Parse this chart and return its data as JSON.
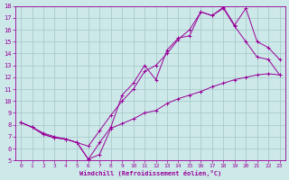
{
  "xlabel": "Windchill (Refroidissement éolien,°C)",
  "background_color": "#cce8e8",
  "line_color": "#990099",
  "grid_color": "#aacccc",
  "xlim": [
    -0.5,
    23.5
  ],
  "ylim": [
    5,
    18
  ],
  "xticks": [
    0,
    1,
    2,
    3,
    4,
    5,
    6,
    7,
    8,
    9,
    10,
    11,
    12,
    13,
    14,
    15,
    16,
    17,
    18,
    19,
    20,
    21,
    22,
    23
  ],
  "yticks": [
    5,
    6,
    7,
    8,
    9,
    10,
    11,
    12,
    13,
    14,
    15,
    16,
    17,
    18
  ],
  "line1_x": [
    0,
    1,
    2,
    3,
    4,
    5,
    6,
    7,
    8,
    9,
    10,
    11,
    12,
    13,
    14,
    15,
    16,
    17,
    18,
    19,
    20,
    21,
    22,
    23
  ],
  "line1_y": [
    8.2,
    7.8,
    7.2,
    6.9,
    6.8,
    6.5,
    5.1,
    5.5,
    7.7,
    8.1,
    8.5,
    9.0,
    9.2,
    9.8,
    10.2,
    10.5,
    10.8,
    11.2,
    11.5,
    11.8,
    12.0,
    12.2,
    12.3,
    12.2
  ],
  "line2_x": [
    0,
    1,
    2,
    3,
    4,
    5,
    6,
    7,
    8,
    9,
    10,
    11,
    12,
    13,
    14,
    15,
    16,
    17,
    18,
    19,
    20,
    21,
    22,
    23
  ],
  "line2_y": [
    8.2,
    7.8,
    7.2,
    6.9,
    6.8,
    6.5,
    5.1,
    6.5,
    7.8,
    10.5,
    11.5,
    13.0,
    11.8,
    14.3,
    15.3,
    15.5,
    17.5,
    17.2,
    17.8,
    16.3,
    15.0,
    13.7,
    13.5,
    12.2
  ],
  "line3_x": [
    0,
    1,
    2,
    3,
    4,
    5,
    6,
    7,
    8,
    9,
    10,
    11,
    12,
    13,
    14,
    15,
    16,
    17,
    18,
    19,
    20,
    21,
    22,
    23
  ],
  "line3_y": [
    8.2,
    7.8,
    7.3,
    7.0,
    6.8,
    6.5,
    6.2,
    7.5,
    8.8,
    10.0,
    11.0,
    12.5,
    13.0,
    14.0,
    15.2,
    16.0,
    17.5,
    17.2,
    17.9,
    16.4,
    17.8,
    15.0,
    14.5,
    13.5
  ]
}
